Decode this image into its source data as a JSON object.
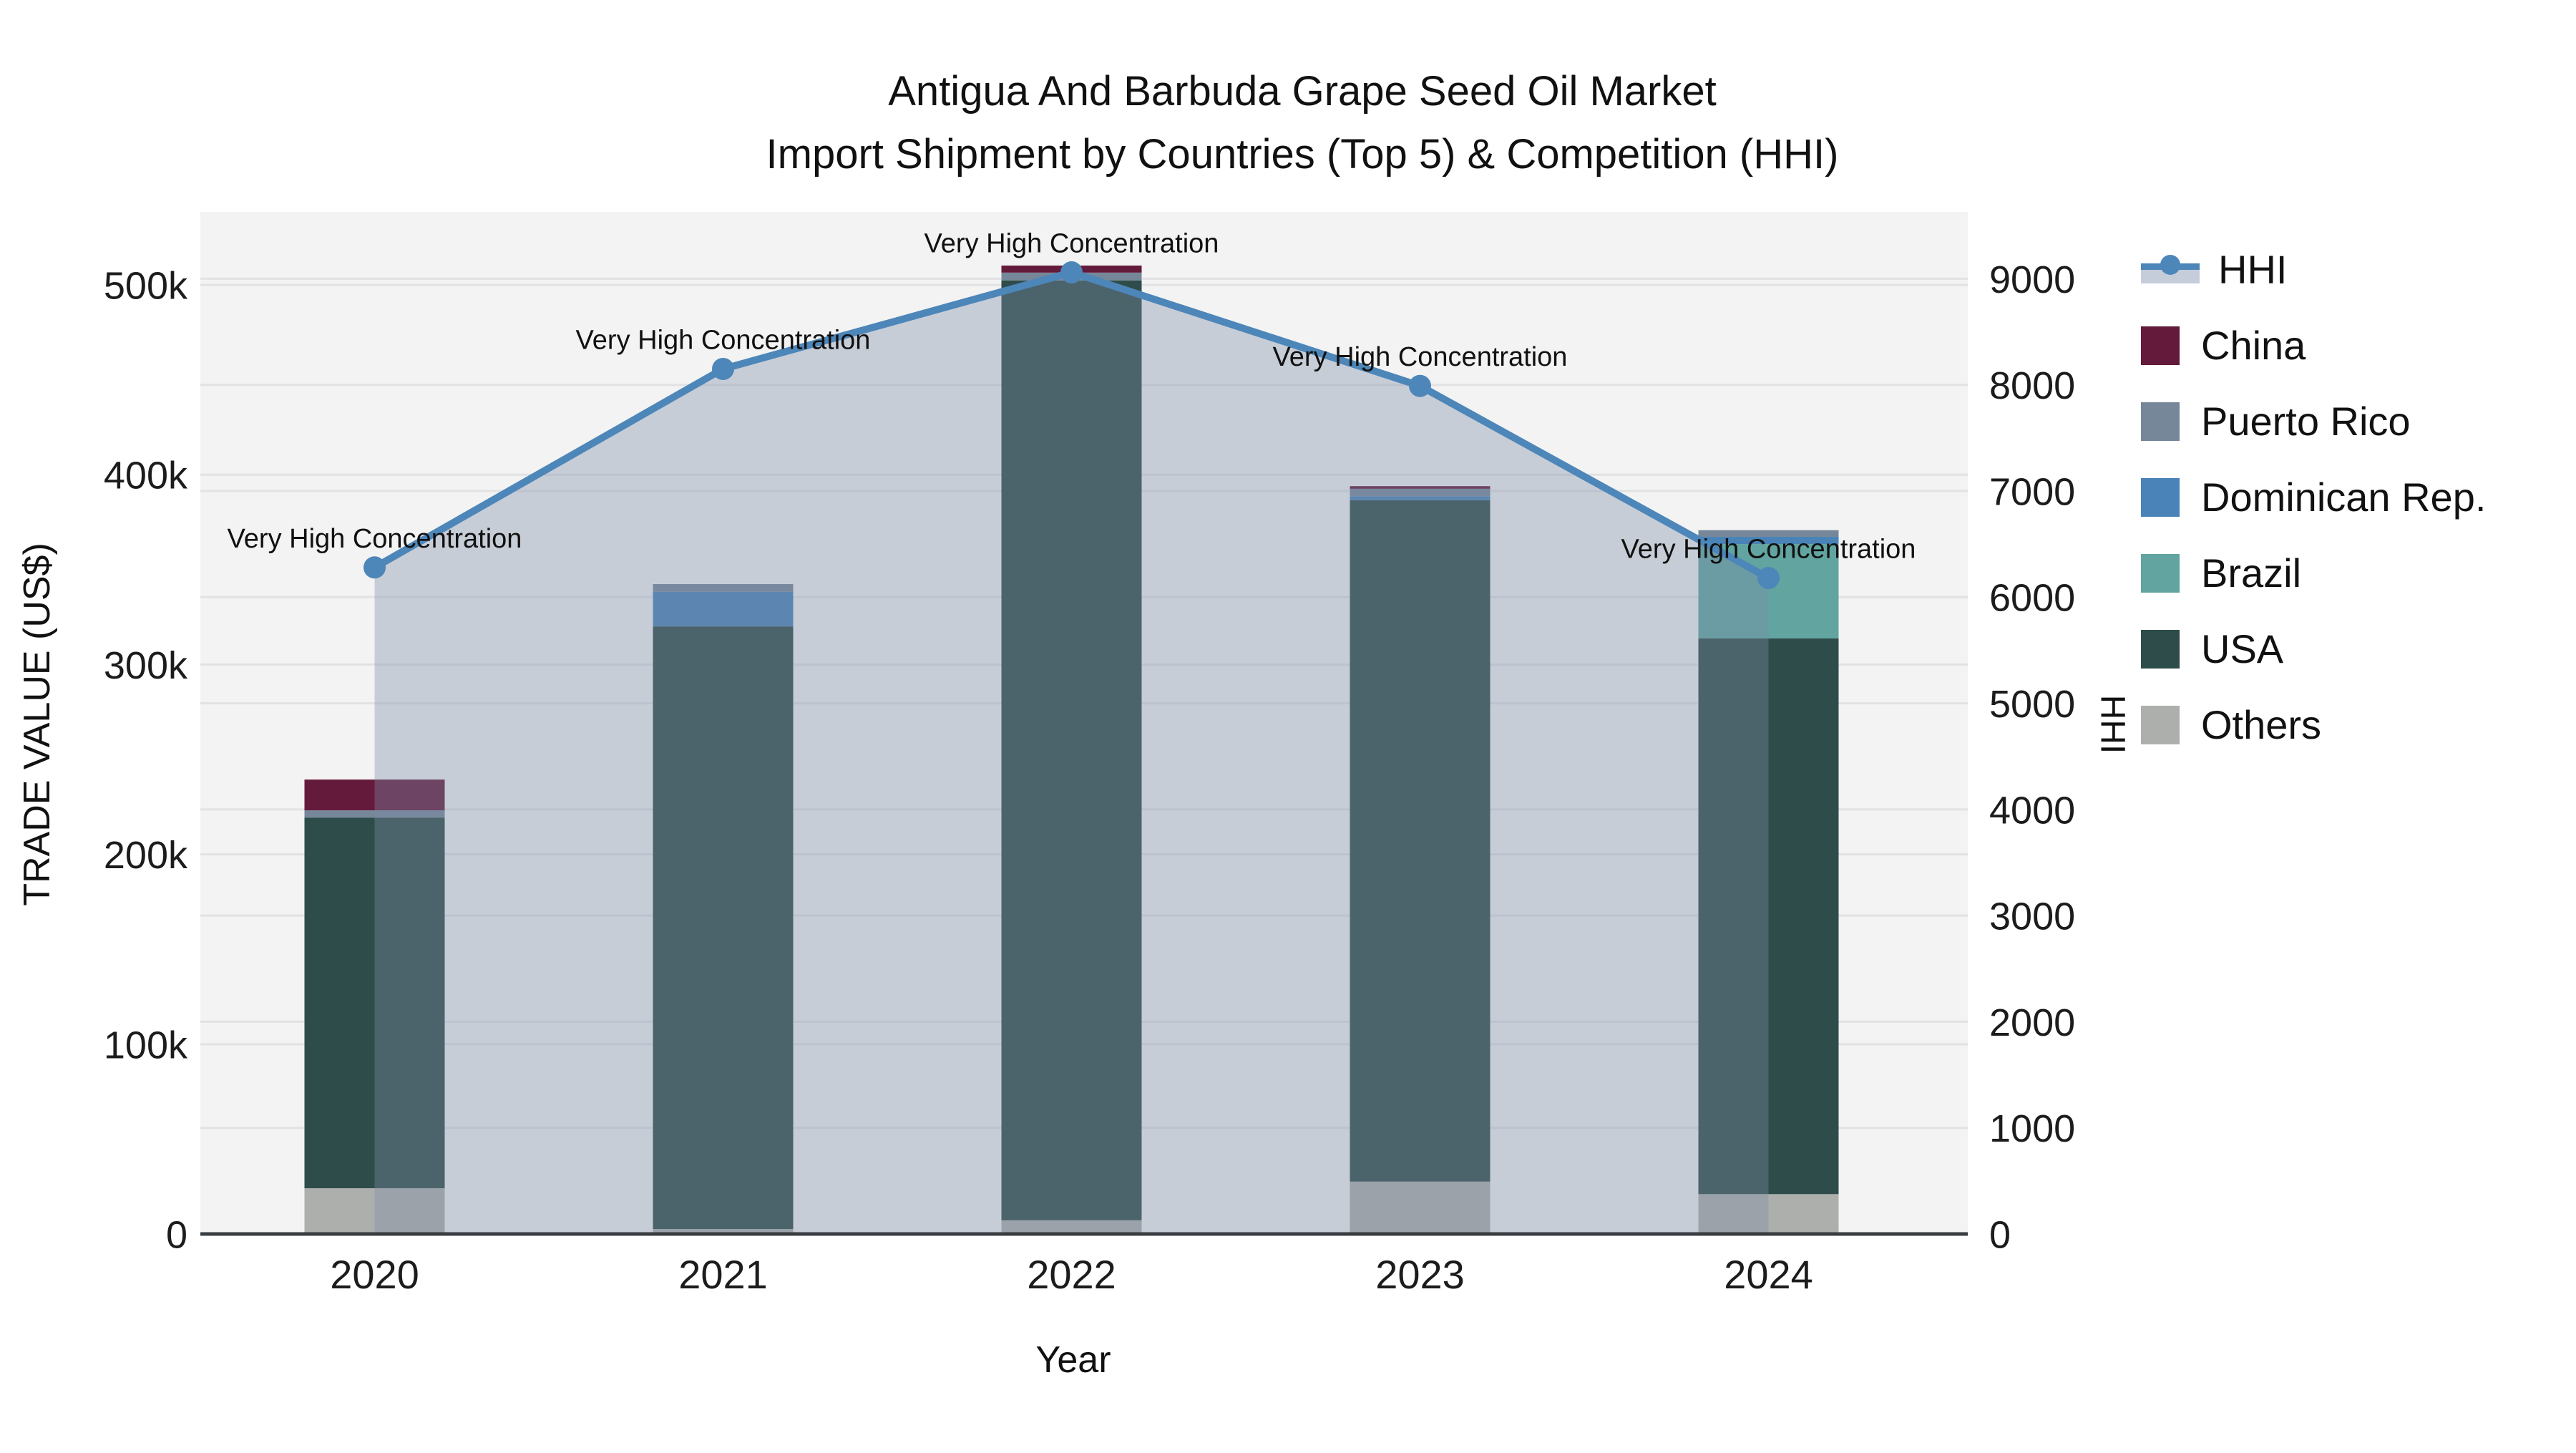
{
  "title": {
    "line1": "Antigua And Barbuda Grape Seed Oil Market",
    "line2": "Import Shipment by Countries (Top 5) & Competition (HHI)"
  },
  "axes": {
    "x_label": "Year",
    "y_left_label": "TRADE VALUE (US$)",
    "y_right_label": "HHI"
  },
  "legend": {
    "items": [
      {
        "label": "HHI",
        "type": "line"
      },
      {
        "label": "China",
        "type": "swatch",
        "color": "#641a3b"
      },
      {
        "label": "Puerto Rico",
        "type": "swatch",
        "color": "#76879a"
      },
      {
        "label": "Dominican Rep.",
        "type": "swatch",
        "color": "#4983b7"
      },
      {
        "label": "Brazil",
        "type": "swatch",
        "color": "#61a4a0"
      },
      {
        "label": "USA",
        "type": "swatch",
        "color": "#2e4c4a"
      },
      {
        "label": "Others",
        "type": "swatch",
        "color": "#adafac"
      }
    ]
  },
  "colors": {
    "plot_bg": "#f3f3f3",
    "gridline": "#e2e2e5",
    "axis_line": "#383d42",
    "hhi_line": "#4d86b8",
    "hhi_area_fill": "rgba(126,140,168,0.37)",
    "tick_text": "#1c1c1c",
    "annotation_text": "#111111"
  },
  "chart_data": {
    "type": "bar+line",
    "title": "Antigua And Barbuda Grape Seed Oil Market — Import Shipment by Countries (Top 5) & Competition (HHI)",
    "categories": [
      "2020",
      "2021",
      "2022",
      "2023",
      "2024"
    ],
    "stacked_bar_axis": "left",
    "y_left": {
      "label": "TRADE VALUE (US$)",
      "max": 538500,
      "ticks": [
        {
          "v": 0,
          "label": "0"
        },
        {
          "v": 100000,
          "label": "100k"
        },
        {
          "v": 200000,
          "label": "200k"
        },
        {
          "v": 300000,
          "label": "300k"
        },
        {
          "v": 400000,
          "label": "400k"
        },
        {
          "v": 500000,
          "label": "500k"
        }
      ]
    },
    "y_right": {
      "label": "HHI",
      "max": 9630,
      "ticks": [
        {
          "v": 0,
          "label": "0"
        },
        {
          "v": 1000,
          "label": "1000"
        },
        {
          "v": 2000,
          "label": "2000"
        },
        {
          "v": 3000,
          "label": "3000"
        },
        {
          "v": 4000,
          "label": "4000"
        },
        {
          "v": 5000,
          "label": "5000"
        },
        {
          "v": 6000,
          "label": "6000"
        },
        {
          "v": 7000,
          "label": "7000"
        },
        {
          "v": 8000,
          "label": "8000"
        },
        {
          "v": 9000,
          "label": "9000"
        }
      ]
    },
    "series": [
      {
        "name": "Others",
        "color": "#adafac",
        "values": [
          24100,
          2600,
          7200,
          27600,
          21000
        ]
      },
      {
        "name": "USA",
        "color": "#2e4c4a",
        "values": [
          195300,
          317500,
          495200,
          359000,
          292800
        ]
      },
      {
        "name": "Brazil",
        "color": "#61a4a0",
        "values": [
          0,
          0,
          0,
          0,
          49700
        ]
      },
      {
        "name": "Dominican Rep.",
        "color": "#4983b7",
        "values": [
          0,
          18200,
          0,
          2100,
          3800
        ]
      },
      {
        "name": "Puerto Rico",
        "color": "#76879a",
        "values": [
          3800,
          4100,
          4100,
          3900,
          3500
        ]
      },
      {
        "name": "China",
        "color": "#641a3b",
        "values": [
          16200,
          0,
          3700,
          1400,
          0
        ]
      }
    ],
    "bar_totals": [
      239400,
      342400,
      510200,
      394000,
      370800
    ],
    "hhi": {
      "name": "HHI",
      "axis": "right",
      "color": "#4d86b8",
      "area_fill": "rgba(126,140,168,0.37)",
      "values": [
        6280,
        8150,
        9060,
        7990,
        6180
      ]
    },
    "annotations": [
      "Very High Concentration",
      "Very High Concentration",
      "Very High Concentration",
      "Very High Concentration",
      "Very High Concentration"
    ]
  }
}
